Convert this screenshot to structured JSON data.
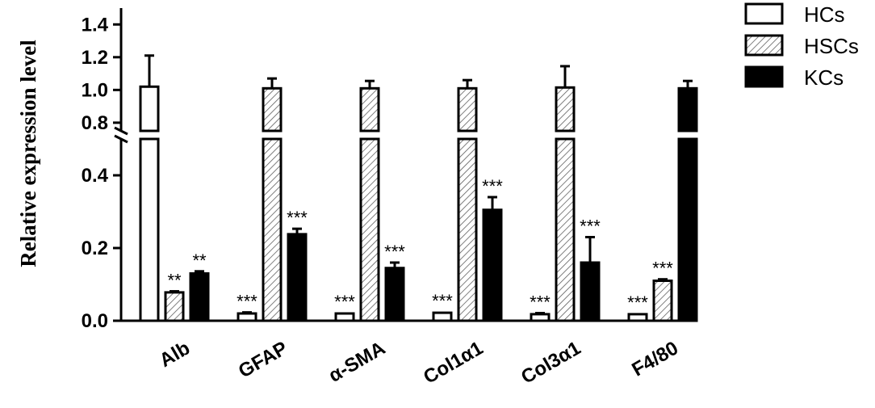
{
  "chart_data": {
    "type": "bar",
    "ylabel": "Relative expression level",
    "xlabel": "",
    "categories": [
      "Alb",
      "GFAP",
      "α-SMA",
      "Col1α1",
      "Col3α1",
      "F4/80"
    ],
    "y_axis": {
      "broken": true,
      "lower_segment": {
        "range": [
          0,
          0.5
        ],
        "ticks": [
          "0.0",
          "0.2",
          "0.4"
        ]
      },
      "upper_segment": {
        "range": [
          0.75,
          1.5
        ],
        "ticks": [
          "0.8",
          "1.0",
          "1.2",
          "1.4"
        ]
      }
    },
    "series": [
      {
        "name": "HCs",
        "pattern": "open",
        "values": [
          1.02,
          0.02,
          0.02,
          0.022,
          0.018,
          0.018
        ],
        "errors": [
          0.19,
          0.003,
          0.002,
          0.002,
          0.003,
          0.002
        ],
        "significance": [
          "",
          "***",
          "***",
          "***",
          "***",
          "***"
        ]
      },
      {
        "name": "HSCs",
        "pattern": "hatched",
        "values": [
          0.078,
          1.01,
          1.01,
          1.01,
          1.015,
          0.11
        ],
        "errors": [
          0.003,
          0.06,
          0.045,
          0.05,
          0.13,
          0.004
        ],
        "significance": [
          "**",
          "",
          "",
          "",
          "",
          "***"
        ]
      },
      {
        "name": "KCs",
        "pattern": "solid",
        "values": [
          0.13,
          0.238,
          0.145,
          0.305,
          0.16,
          1.01
        ],
        "errors": [
          0.006,
          0.015,
          0.015,
          0.035,
          0.07,
          0.045
        ],
        "significance": [
          "**",
          "***",
          "***",
          "***",
          "***",
          ""
        ]
      }
    ],
    "legend": {
      "position": "top-right",
      "entries": [
        "HCs",
        "HSCs",
        "KCs"
      ]
    },
    "grid": false
  }
}
